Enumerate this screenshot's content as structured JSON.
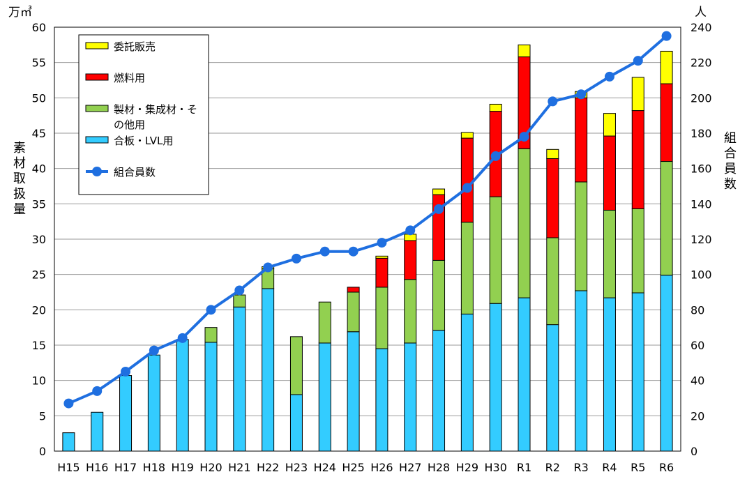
{
  "chart_data": {
    "type": "bar",
    "stacked": true,
    "categories": [
      "H15",
      "H16",
      "H17",
      "H18",
      "H19",
      "H20",
      "H21",
      "H22",
      "H23",
      "H24",
      "H25",
      "H26",
      "H27",
      "H28",
      "H29",
      "H30",
      "R1",
      "R2",
      "R3",
      "R4",
      "R5",
      "R6"
    ],
    "series": [
      {
        "name": "合板・LVL用",
        "color": "#33ccff",
        "values": [
          2.6,
          5.5,
          10.7,
          13.6,
          15.8,
          15.4,
          20.4,
          23.0,
          8.0,
          15.3,
          16.9,
          14.5,
          15.3,
          17.1,
          19.4,
          20.9,
          21.7,
          17.9,
          22.7,
          21.7,
          22.4,
          24.9
        ]
      },
      {
        "name": "製材・集成材・その他用",
        "color": "#92d050",
        "values": [
          0,
          0,
          0,
          0,
          0,
          2.1,
          1.7,
          2.8,
          8.2,
          5.8,
          5.6,
          8.7,
          9.0,
          9.9,
          13.0,
          15.1,
          21.1,
          12.3,
          15.4,
          12.4,
          11.9,
          16.1
        ]
      },
      {
        "name": "燃料用",
        "color": "#ff0000",
        "values": [
          0,
          0,
          0,
          0,
          0,
          0,
          0,
          0,
          0,
          0,
          0.7,
          4.1,
          5.5,
          9.3,
          11.9,
          12.1,
          13.0,
          11.2,
          11.9,
          10.5,
          13.9,
          11.0
        ]
      },
      {
        "name": "委託販売",
        "color": "#ffff00",
        "values": [
          0,
          0,
          0,
          0,
          0,
          0,
          0,
          0.3,
          0,
          0,
          0,
          0.3,
          0.9,
          0.8,
          0.8,
          1.0,
          1.7,
          1.3,
          0.9,
          3.2,
          4.7,
          4.6
        ]
      }
    ],
    "line": {
      "name": "組合員数",
      "color": "#1f6fe0",
      "values": [
        27,
        34,
        45,
        57,
        64,
        80,
        91,
        104,
        109,
        113,
        113,
        118,
        125,
        137,
        149,
        167,
        178,
        198,
        202,
        212,
        221,
        235
      ]
    },
    "legend_order": [
      "委託販売",
      "燃料用",
      "製材・集成材・その他用",
      "合板・LVL用",
      "組合員数"
    ],
    "legend_lines": {
      "製材・集成材・その他用": [
        "製材・集成材・そ",
        "の他用"
      ]
    },
    "left_axis": {
      "title": "素材取扱量",
      "unit": "万㎥",
      "ylim": [
        0,
        60
      ],
      "ticks": [
        "0",
        "5",
        "10",
        "15",
        "20",
        "25",
        "30",
        "35",
        "40",
        "45",
        "50",
        "55",
        "60"
      ]
    },
    "right_axis": {
      "title": "組合員数",
      "unit": "人",
      "ylim": [
        0,
        240
      ],
      "ticks": [
        "0",
        "20",
        "40",
        "60",
        "80",
        "100",
        "120",
        "140",
        "160",
        "180",
        "200",
        "220",
        "240"
      ]
    },
    "grid": true,
    "legend_position": "top-left"
  }
}
